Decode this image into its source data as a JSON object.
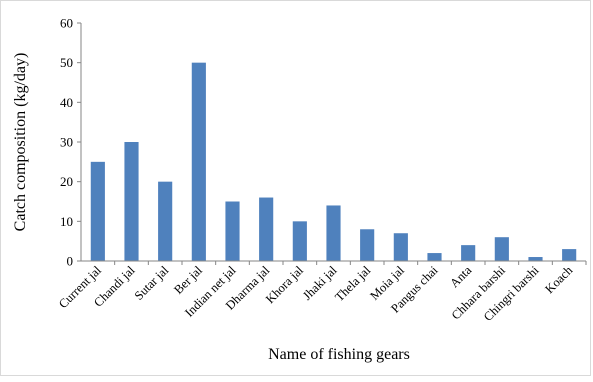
{
  "chart_data": {
    "type": "bar",
    "title": "",
    "xlabel": "Name of fishing gears",
    "ylabel": "Catch composition (kg/day)",
    "ylim": [
      0,
      60
    ],
    "yticks": [
      0,
      10,
      20,
      30,
      40,
      50,
      60
    ],
    "grid": false,
    "legend": "none",
    "bar_color": "#4f81bd",
    "categories": [
      "Current jal",
      "Chandi jal",
      "Sutar jal",
      "Ber jal",
      "Indian net jal",
      "Dharma jal",
      "Khora jal",
      "Jhaki jal",
      "Thela jal",
      "Moia jal",
      "Pangus chai",
      "Anta",
      "Chhara barshi",
      "Chingri barshi",
      "Koach"
    ],
    "values": [
      25,
      30,
      20,
      50,
      15,
      16,
      10,
      14,
      8,
      7,
      2,
      4,
      6,
      1,
      3
    ]
  }
}
